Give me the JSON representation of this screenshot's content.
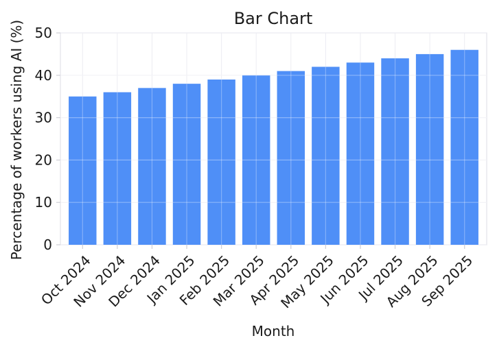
{
  "chart_data": {
    "type": "bar",
    "title": "Bar Chart",
    "xlabel": "Month",
    "ylabel": "Percentage of workers using AI (%)",
    "categories": [
      "Oct 2024",
      "Nov 2024",
      "Dec 2024",
      "Jan 2025",
      "Feb 2025",
      "Mar 2025",
      "Apr 2025",
      "May 2025",
      "Jun 2025",
      "Jul 2025",
      "Aug 2025",
      "Sep 2025"
    ],
    "values": [
      35,
      36,
      37,
      38,
      39,
      40,
      41,
      42,
      43,
      44,
      45,
      46
    ],
    "ylim": [
      0,
      50
    ],
    "yticks": [
      0,
      10,
      20,
      30,
      40,
      50
    ],
    "grid": true,
    "bar_color": "#4f8ff7"
  }
}
